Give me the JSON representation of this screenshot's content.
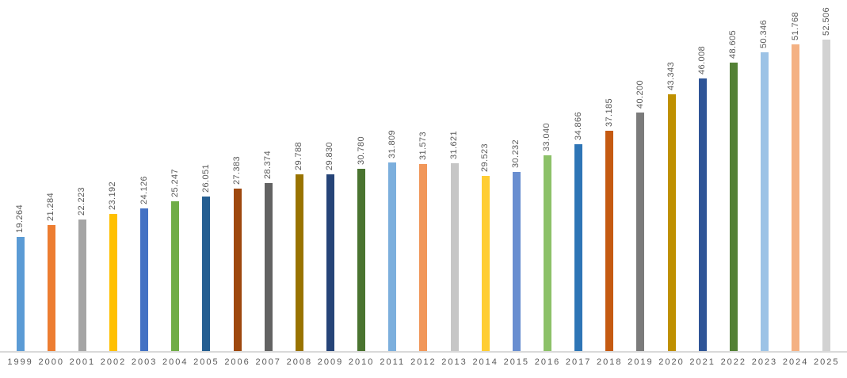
{
  "chart_data": {
    "type": "bar",
    "title": "",
    "xlabel": "",
    "ylabel": "",
    "ylim": [
      0,
      55
    ],
    "grid": false,
    "legend": false,
    "data_labels": {
      "rotation": -90,
      "color": "#595959"
    },
    "axis": {
      "line_color": "#d9d9d9",
      "tick_label_color": "#595959"
    },
    "categories": [
      "1999",
      "2000",
      "2001",
      "2002",
      "2003",
      "2004",
      "2005",
      "2006",
      "2007",
      "2008",
      "2009",
      "2010",
      "2011",
      "2012",
      "2013",
      "2014",
      "2015",
      "2016",
      "2017",
      "2018",
      "2019",
      "2020",
      "2021",
      "2022",
      "2023",
      "2024",
      "2025"
    ],
    "values": [
      19.264,
      21.284,
      22.223,
      23.192,
      24.126,
      25.247,
      26.051,
      27.383,
      28.374,
      29.788,
      29.83,
      30.78,
      31.809,
      31.573,
      31.621,
      29.523,
      30.232,
      33.04,
      34.866,
      37.185,
      40.2,
      43.343,
      46.008,
      48.605,
      50.346,
      51.768,
      52.506
    ],
    "value_labels": [
      "19.264",
      "21.284",
      "22.223",
      "23.192",
      "24.126",
      "25.247",
      "26.051",
      "27.383",
      "28.374",
      "29.788",
      "29.830",
      "30.780",
      "31.809",
      "31.573",
      "31.621",
      "29.523",
      "30.232",
      "33.040",
      "34.866",
      "37.185",
      "40.200",
      "43.343",
      "46.008",
      "48.605",
      "50.346",
      "51.768",
      "52.506"
    ],
    "bar_colors": [
      "#5B9BD5",
      "#ED7D31",
      "#A5A5A5",
      "#FFC000",
      "#4472C4",
      "#70AD47",
      "#255E91",
      "#9E480E",
      "#636363",
      "#997300",
      "#264478",
      "#4A7430",
      "#7CAFDD",
      "#F1975A",
      "#C6C6C6",
      "#FFCD33",
      "#698ED0",
      "#8CC168",
      "#2E75B6",
      "#C55A11",
      "#7B7B7B",
      "#BF9000",
      "#2F5597",
      "#538135",
      "#9DC3E6",
      "#F4B183",
      "#D2D2D2"
    ]
  }
}
